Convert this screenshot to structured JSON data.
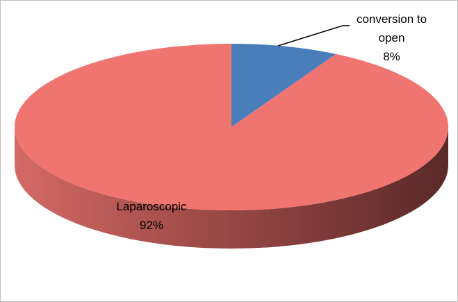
{
  "chart_data": {
    "type": "pie3d",
    "categories": [
      "conversion to open",
      "Laparoscopic"
    ],
    "values": [
      8,
      92
    ],
    "value_labels": [
      "8%",
      "92%"
    ],
    "colors": [
      "#4a7ebb",
      "#f07470"
    ]
  }
}
